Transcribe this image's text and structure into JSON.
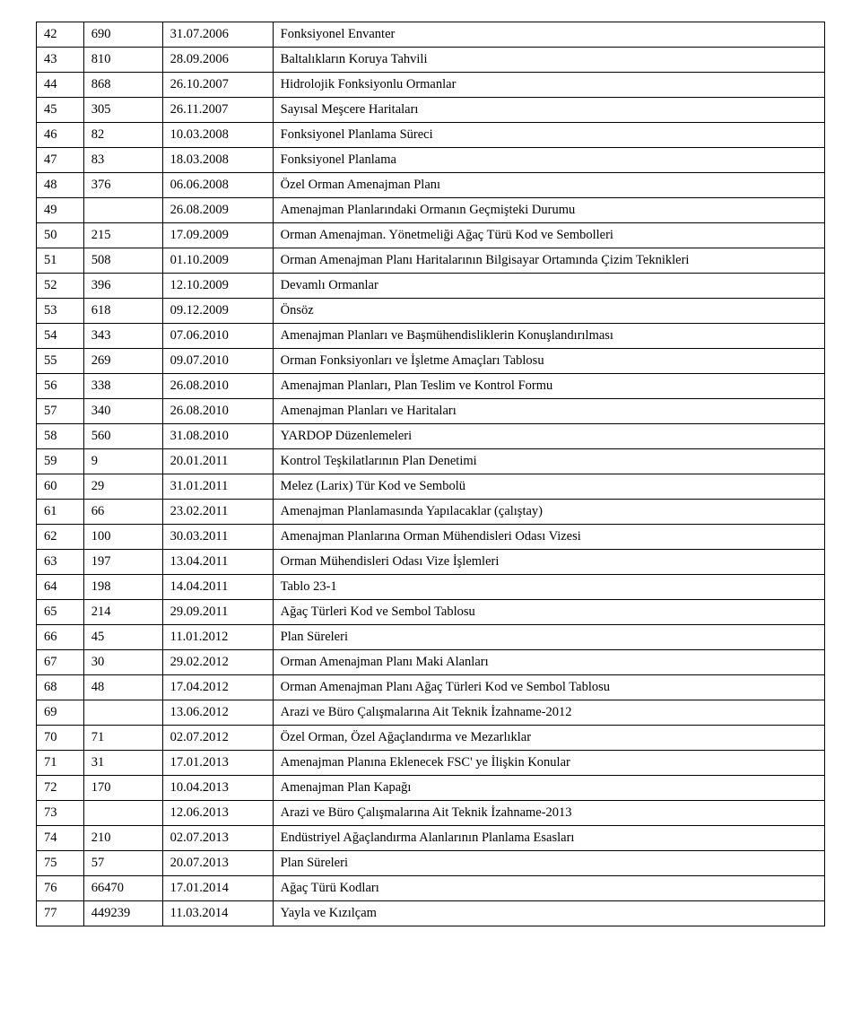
{
  "table": {
    "columns": [
      "seq",
      "ref",
      "date",
      "description"
    ],
    "col_widths_pct": [
      6,
      10,
      14,
      70
    ],
    "border_color": "#000000",
    "background_color": "#ffffff",
    "font_family": "Times New Roman",
    "font_size_pt": 11,
    "rows": [
      [
        "42",
        "690",
        "31.07.2006",
        "Fonksiyonel Envanter"
      ],
      [
        "43",
        "810",
        "28.09.2006",
        "Baltalıkların Koruya Tahvili"
      ],
      [
        "44",
        "868",
        "26.10.2007",
        "Hidrolojik Fonksiyonlu Ormanlar"
      ],
      [
        "45",
        "305",
        "26.11.2007",
        "Sayısal Meşcere Haritaları"
      ],
      [
        "46",
        "82",
        "10.03.2008",
        "Fonksiyonel Planlama Süreci"
      ],
      [
        "47",
        "83",
        "18.03.2008",
        "Fonksiyonel Planlama"
      ],
      [
        "48",
        "376",
        "06.06.2008",
        "Özel Orman Amenajman Planı"
      ],
      [
        "49",
        "",
        "26.08.2009",
        "Amenajman Planlarındaki Ormanın Geçmişteki Durumu"
      ],
      [
        "50",
        "215",
        "17.09.2009",
        "Orman Amenajman. Yönetmeliği Ağaç Türü Kod ve Sembolleri"
      ],
      [
        "51",
        "508",
        "01.10.2009",
        "Orman Amenajman Planı Haritalarının Bilgisayar Ortamında Çizim Teknikleri"
      ],
      [
        "52",
        "396",
        "12.10.2009",
        "Devamlı Ormanlar"
      ],
      [
        "53",
        "618",
        "09.12.2009",
        "Önsöz"
      ],
      [
        "54",
        "343",
        "07.06.2010",
        "Amenajman Planları ve Başmühendisliklerin Konuşlandırılması"
      ],
      [
        "55",
        "269",
        "09.07.2010",
        "Orman Fonksiyonları ve İşletme Amaçları Tablosu"
      ],
      [
        "56",
        "338",
        "26.08.2010",
        "Amenajman Planları, Plan Teslim ve Kontrol Formu"
      ],
      [
        "57",
        "340",
        "26.08.2010",
        "Amenajman Planları ve Haritaları"
      ],
      [
        "58",
        "560",
        "31.08.2010",
        "YARDOP Düzenlemeleri"
      ],
      [
        "59",
        "9",
        "20.01.2011",
        "Kontrol Teşkilatlarının Plan Denetimi"
      ],
      [
        "60",
        "29",
        "31.01.2011",
        "Melez (Larix) Tür Kod ve Sembolü"
      ],
      [
        "61",
        "66",
        "23.02.2011",
        "Amenajman Planlamasında Yapılacaklar  (çalıştay)"
      ],
      [
        "62",
        "100",
        "30.03.2011",
        "Amenajman Planlarına Orman Mühendisleri Odası Vizesi"
      ],
      [
        "63",
        "197",
        "13.04.2011",
        "Orman Mühendisleri Odası Vize İşlemleri"
      ],
      [
        "64",
        "198",
        "14.04.2011",
        "Tablo 23-1"
      ],
      [
        "65",
        "214",
        "29.09.2011",
        "Ağaç Türleri Kod ve Sembol Tablosu"
      ],
      [
        "66",
        "45",
        "11.01.2012",
        "Plan Süreleri"
      ],
      [
        "67",
        "30",
        "29.02.2012",
        "Orman Amenajman Planı Maki Alanları"
      ],
      [
        "68",
        "48",
        "17.04.2012",
        "Orman Amenajman Planı Ağaç Türleri Kod ve Sembol Tablosu"
      ],
      [
        "69",
        "",
        "13.06.2012",
        "Arazi ve Büro Çalışmalarına Ait Teknik İzahname-2012"
      ],
      [
        "70",
        "71",
        "02.07.2012",
        "Özel Orman, Özel Ağaçlandırma ve Mezarlıklar"
      ],
      [
        "71",
        "31",
        "17.01.2013",
        "Amenajman Planına Eklenecek FSC' ye İlişkin Konular"
      ],
      [
        "72",
        "170",
        "10.04.2013",
        "Amenajman Plan Kapağı"
      ],
      [
        "73",
        "",
        "12.06.2013",
        "Arazi ve Büro Çalışmalarına Ait Teknik İzahname-2013"
      ],
      [
        "74",
        "210",
        "02.07.2013",
        "Endüstriyel Ağaçlandırma Alanlarının Planlama Esasları"
      ],
      [
        "75",
        "57",
        "20.07.2013",
        "Plan Süreleri"
      ],
      [
        "76",
        "66470",
        "17.01.2014",
        "Ağaç Türü Kodları"
      ],
      [
        "77",
        "449239",
        "11.03.2014",
        "Yayla ve Kızılçam"
      ]
    ]
  }
}
